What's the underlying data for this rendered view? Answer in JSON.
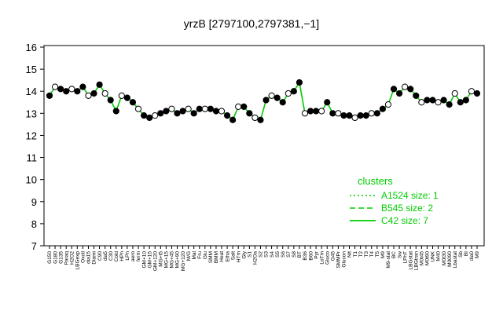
{
  "chart_data": {
    "type": "line",
    "title": "yrzB [2797100,2797381,−1]",
    "xlabel": "",
    "ylabel": "",
    "ylim": [
      7,
      16
    ],
    "yticks": [
      7,
      8,
      9,
      10,
      11,
      12,
      13,
      14,
      15,
      16
    ],
    "grid": false,
    "legend": {
      "title": "clusters",
      "placement": "right",
      "entries": [
        {
          "label": "A1524 size: 1",
          "style": "dotted"
        },
        {
          "label": "B545 size: 2",
          "style": "dashed"
        },
        {
          "label": "C42 size: 7",
          "style": "solid"
        }
      ]
    },
    "colors": {
      "line": "#00cc00",
      "points": "#000000",
      "axis": "#000000"
    },
    "x_tick_labels": [
      "G150",
      "G180",
      "G135",
      "Paraq",
      "H2O2",
      "LBGexp",
      "Oxctl",
      "dia15",
      "Diami",
      "C90",
      "dia5",
      "C30",
      "Cold",
      "HPh",
      "LPh",
      "aero",
      "ferm",
      "GM+10",
      "GM+15",
      "GM+120",
      "MG+t5",
      "MG+15",
      "MG+45",
      "MG+90",
      "MG+120",
      "M/G",
      "Mal",
      "Fru",
      "Glu",
      "SMM",
      "BMM",
      "Heat",
      "Etha",
      "Salt",
      "HTm",
      "Gly",
      "S1",
      "H2Oa",
      "S2",
      "S3",
      "S4",
      "S5",
      "S6",
      "S7",
      "S8",
      "BT",
      "B36",
      "B60",
      "Pyr",
      "LoTm",
      "Gluco",
      "G45",
      "SMMPr",
      "Glucon",
      "Nit",
      "T1",
      "T2",
      "T3",
      "T4",
      "T5",
      "M9",
      "M9-stat",
      "BC",
      "Sw",
      "LPhT",
      "LBGstat",
      "LBGtran",
      "M0t45",
      "M0t90",
      "UNK",
      "M40",
      "M0t30",
      "M0090",
      "Lbastat",
      "Sb",
      "BI",
      "dia0",
      "M9"
    ],
    "x": [
      1,
      2,
      3,
      4,
      5,
      6,
      7,
      8,
      9,
      10,
      11,
      12,
      13,
      14,
      15,
      16,
      17,
      18,
      19,
      20,
      21,
      22,
      23,
      24,
      25,
      26,
      27,
      28,
      29,
      30,
      31,
      32,
      33,
      34,
      35,
      36,
      37,
      38,
      39,
      40,
      41,
      42,
      43,
      44,
      45,
      46,
      47,
      48,
      49,
      50,
      51,
      52,
      53,
      54,
      55,
      56,
      57,
      58,
      59,
      60,
      61,
      62,
      63,
      64,
      65,
      66,
      67,
      68,
      69,
      70,
      71,
      72,
      73,
      74,
      75,
      76,
      77,
      78
    ],
    "series": [
      {
        "name": "",
        "values": [
          13.8,
          14.2,
          14.1,
          14.0,
          14.1,
          14.0,
          14.2,
          13.8,
          13.9,
          14.3,
          13.9,
          13.6,
          13.1,
          13.8,
          13.7,
          13.5,
          13.2,
          12.9,
          12.8,
          12.9,
          13.0,
          13.1,
          13.2,
          13.0,
          13.1,
          13.2,
          13.0,
          13.2,
          13.2,
          13.2,
          13.1,
          13.1,
          12.9,
          12.7,
          13.3,
          13.3,
          13.0,
          12.8,
          12.7,
          13.6,
          13.8,
          13.7,
          13.5,
          13.9,
          14.0,
          14.4,
          13.0,
          13.1,
          13.1,
          13.1,
          13.5,
          13.0,
          13.0,
          12.9,
          12.9,
          12.8,
          12.9,
          12.9,
          13.0,
          13.0,
          13.2,
          13.4,
          14.1,
          13.9,
          14.2,
          14.1,
          13.8,
          13.5,
          13.6,
          13.6,
          13.5,
          13.6,
          13.4,
          13.9,
          13.5,
          13.6,
          14.0,
          13.9
        ]
      }
    ]
  }
}
